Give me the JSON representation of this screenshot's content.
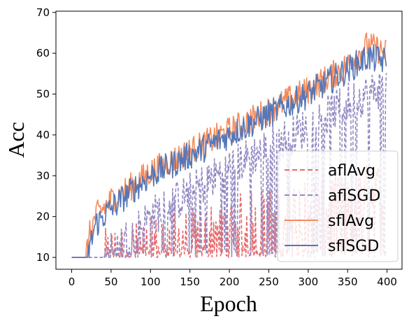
{
  "chart_data": {
    "type": "line",
    "xlabel": "Epoch",
    "ylabel": "Acc",
    "xlim": [
      -19.95,
      418.95
    ],
    "ylim": [
      7.1,
      70.3
    ],
    "xticks": [
      0,
      50,
      100,
      150,
      200,
      250,
      300,
      350,
      400
    ],
    "yticks": [
      10,
      20,
      30,
      40,
      50,
      60,
      70
    ],
    "grid": false,
    "legend_placement": "lower-right",
    "x": {
      "start": 0,
      "end": 399,
      "step": 1
    },
    "series": [
      {
        "name": "aflAvg",
        "color": "#e8696b",
        "dash": "dashed",
        "anchors": [
          [
            0,
            10
          ],
          [
            40,
            10
          ],
          [
            60,
            11
          ],
          [
            100,
            13
          ],
          [
            150,
            15
          ],
          [
            200,
            18
          ],
          [
            250,
            21
          ],
          [
            300,
            23
          ],
          [
            350,
            25
          ],
          [
            399,
            27
          ]
        ],
        "noise": 7,
        "floor_prob": 0.45
      },
      {
        "name": "aflSGD",
        "color": "#9289c2",
        "dash": "dashed",
        "anchors": [
          [
            0,
            10
          ],
          [
            40,
            10
          ],
          [
            60,
            13
          ],
          [
            100,
            20
          ],
          [
            150,
            26
          ],
          [
            200,
            32
          ],
          [
            250,
            37
          ],
          [
            300,
            42
          ],
          [
            350,
            48
          ],
          [
            399,
            52
          ]
        ],
        "noise": 5,
        "floor_prob": 0.18
      },
      {
        "name": "sflAvg",
        "color": "#f38b5c",
        "dash": "solid",
        "anchors": [
          [
            0,
            10
          ],
          [
            18,
            10
          ],
          [
            22,
            15
          ],
          [
            30,
            20
          ],
          [
            50,
            24
          ],
          [
            80,
            28
          ],
          [
            100,
            31
          ],
          [
            150,
            36
          ],
          [
            200,
            41
          ],
          [
            250,
            46
          ],
          [
            300,
            51
          ],
          [
            350,
            57
          ],
          [
            375,
            62
          ],
          [
            399,
            60
          ]
        ],
        "noise": 3.5,
        "floor_prob": 0
      },
      {
        "name": "sflSGD",
        "color": "#5477b8",
        "dash": "solid",
        "anchors": [
          [
            0,
            10
          ],
          [
            20,
            10
          ],
          [
            25,
            14
          ],
          [
            30,
            18
          ],
          [
            50,
            22
          ],
          [
            80,
            27
          ],
          [
            100,
            30
          ],
          [
            150,
            35
          ],
          [
            200,
            40
          ],
          [
            250,
            45
          ],
          [
            300,
            50
          ],
          [
            350,
            56
          ],
          [
            375,
            59
          ],
          [
            399,
            58
          ]
        ],
        "noise": 3.5,
        "floor_prob": 0
      }
    ]
  }
}
